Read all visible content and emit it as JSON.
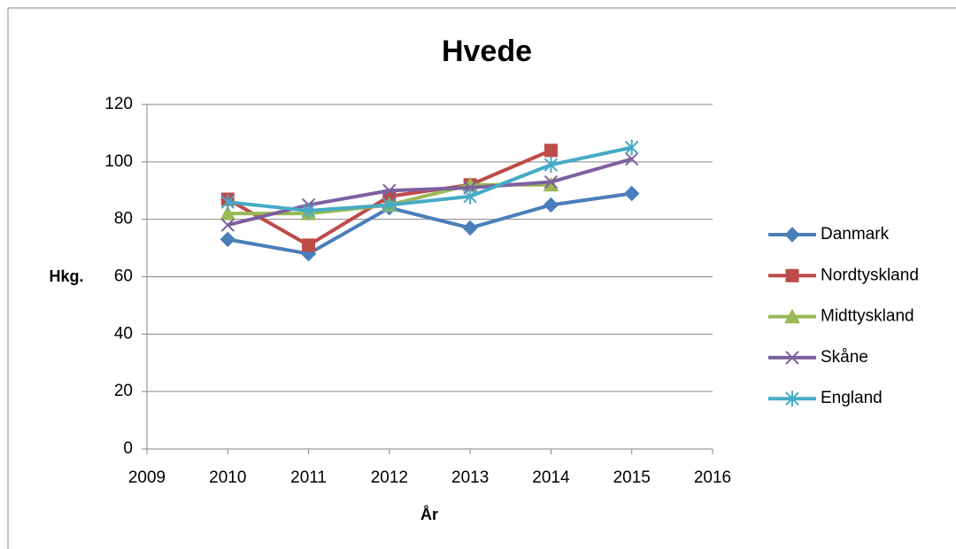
{
  "chart_data": {
    "type": "line",
    "title": "Hvede",
    "xlabel": "År",
    "ylabel": "Hkg.",
    "x": [
      2010,
      2011,
      2012,
      2013,
      2014,
      2015
    ],
    "series": [
      {
        "name": "Danmark",
        "color": "#4a7ebb",
        "marker": "diamond",
        "values": [
          73,
          68,
          84,
          77,
          85,
          89
        ]
      },
      {
        "name": "Nordtyskland",
        "color": "#be4b48",
        "marker": "square",
        "values": [
          87,
          71,
          88,
          92,
          104,
          null
        ]
      },
      {
        "name": "Midttyskland",
        "color": "#98b954",
        "marker": "triangle",
        "values": [
          82,
          82,
          85,
          92,
          92,
          null
        ]
      },
      {
        "name": "Skåne",
        "color": "#7d60a0",
        "marker": "x",
        "values": [
          78,
          85,
          90,
          91,
          93,
          101
        ]
      },
      {
        "name": "England",
        "color": "#46aac5",
        "marker": "star",
        "values": [
          86,
          83,
          85,
          88,
          99,
          105
        ]
      }
    ],
    "xlim": [
      2009,
      2016
    ],
    "xticks": [
      2009,
      2010,
      2011,
      2012,
      2013,
      2014,
      2015,
      2016
    ],
    "ylim": [
      0,
      120
    ],
    "yticks": [
      0,
      20,
      40,
      60,
      80,
      100,
      120
    ],
    "grid": true,
    "legend": "right"
  }
}
